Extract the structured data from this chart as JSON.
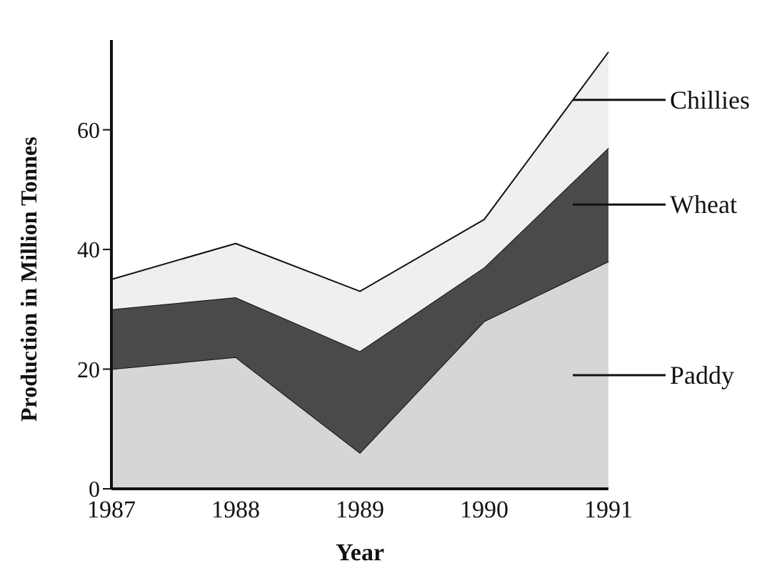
{
  "chart_data": {
    "type": "area",
    "stacked": true,
    "xlabel": "Year",
    "ylabel": "Production in Million Tonnes",
    "categories": [
      "1987",
      "1988",
      "1989",
      "1990",
      "1991"
    ],
    "ylim": [
      0,
      75
    ],
    "yticks": [
      0,
      20,
      40,
      60
    ],
    "grid": false,
    "legend": "right",
    "series": [
      {
        "name": "Paddy",
        "color": "#d6d6d6",
        "values": [
          20,
          22,
          6,
          28,
          38
        ]
      },
      {
        "name": "Wheat",
        "color": "#4a4a4a",
        "values": [
          10,
          10,
          17,
          9,
          19
        ]
      },
      {
        "name": "Chillies",
        "color": "#efefef",
        "values": [
          5,
          9,
          10,
          8,
          16
        ]
      }
    ]
  }
}
